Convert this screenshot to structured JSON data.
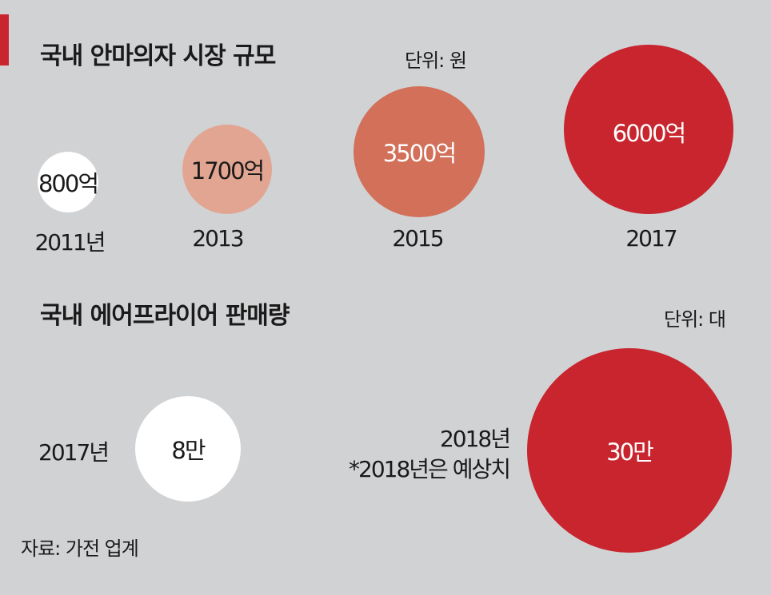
{
  "colors": {
    "background": "#d1d2d4",
    "accent": "#c8252e",
    "white": "#ffffff",
    "light_salmon": "#e2a592",
    "salmon": "#d2705a",
    "red": "#c8252e"
  },
  "section1": {
    "title": "국내 안마의자 시장 규모",
    "unit": "단위: 원"
  },
  "section2": {
    "title": "국내 에어프라이어 판매량",
    "unit": "단위: 대"
  },
  "source": "자료: 가전 업계",
  "chart_data": [
    {
      "type": "bubble",
      "title": "국내 안마의자 시장 규모",
      "unit": "단위: 원",
      "points": [
        {
          "year_label": "2011년",
          "value": 800,
          "value_label": "800억",
          "color": "#ffffff"
        },
        {
          "year_label": "2013",
          "value": 1700,
          "value_label": "1700억",
          "color": "#e2a592"
        },
        {
          "year_label": "2015",
          "value": 3500,
          "value_label": "3500억",
          "color": "#d2705a"
        },
        {
          "year_label": "2017",
          "value": 6000,
          "value_label": "6000억",
          "color": "#c8252e"
        }
      ]
    },
    {
      "type": "bubble",
      "title": "국내 에어프라이어 판매량",
      "unit": "단위: 대",
      "points": [
        {
          "year_label": "2017년",
          "value": 80000,
          "value_label": "8만",
          "color": "#ffffff"
        },
        {
          "year_label": "2018년",
          "note": "*2018년은 예상치",
          "value": 300000,
          "value_label": "30만",
          "color": "#c8252e"
        }
      ]
    }
  ]
}
